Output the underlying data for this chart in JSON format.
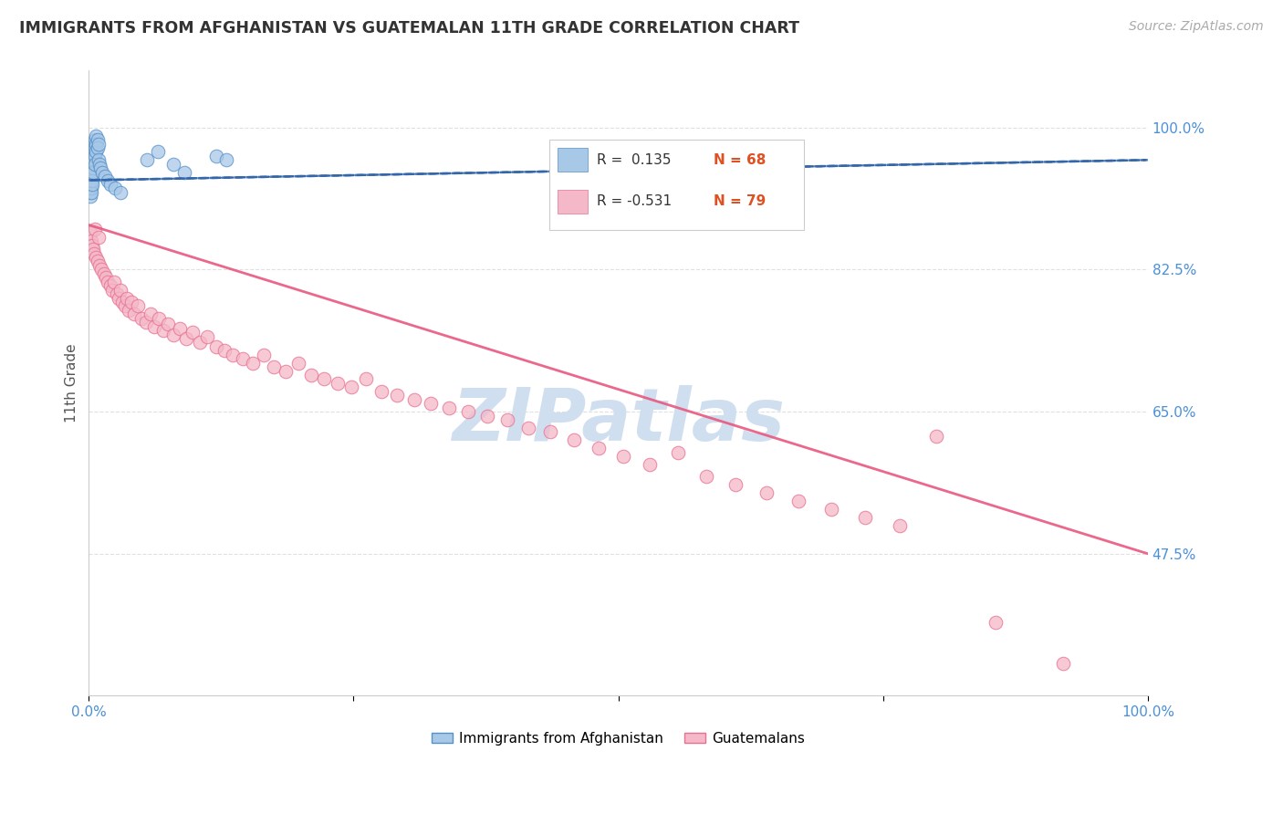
{
  "title": "IMMIGRANTS FROM AFGHANISTAN VS GUATEMALAN 11TH GRADE CORRELATION CHART",
  "source": "Source: ZipAtlas.com",
  "ylabel": "11th Grade",
  "ytick_labels": [
    "100.0%",
    "82.5%",
    "65.0%",
    "47.5%"
  ],
  "ytick_values": [
    1.0,
    0.825,
    0.65,
    0.475
  ],
  "afghanistan_color": "#a8c8e8",
  "guatemala_color": "#f4b8c8",
  "afghanistan_edge": "#5590c8",
  "guatemala_edge": "#e87090",
  "trend_afghanistan_color": "#3366aa",
  "trend_guatemala_color": "#e85880",
  "watermark_color": "#d0dff0",
  "background_color": "#ffffff",
  "xlim": [
    0.0,
    1.0
  ],
  "ylim": [
    0.3,
    1.07
  ],
  "afghanistan_points_x": [
    0.001,
    0.001,
    0.001,
    0.001,
    0.001,
    0.001,
    0.001,
    0.001,
    0.001,
    0.001,
    0.002,
    0.002,
    0.002,
    0.002,
    0.002,
    0.002,
    0.002,
    0.002,
    0.002,
    0.002,
    0.003,
    0.003,
    0.003,
    0.003,
    0.003,
    0.003,
    0.003,
    0.003,
    0.003,
    0.004,
    0.004,
    0.004,
    0.004,
    0.004,
    0.004,
    0.004,
    0.005,
    0.005,
    0.005,
    0.005,
    0.005,
    0.006,
    0.006,
    0.006,
    0.006,
    0.007,
    0.007,
    0.007,
    0.008,
    0.008,
    0.009,
    0.009,
    0.01,
    0.011,
    0.013,
    0.015,
    0.018,
    0.02,
    0.025,
    0.03,
    0.055,
    0.065,
    0.08,
    0.09,
    0.12,
    0.13
  ],
  "afghanistan_points_y": [
    0.96,
    0.955,
    0.95,
    0.945,
    0.94,
    0.935,
    0.93,
    0.925,
    0.92,
    0.915,
    0.965,
    0.96,
    0.955,
    0.95,
    0.945,
    0.94,
    0.935,
    0.93,
    0.925,
    0.92,
    0.97,
    0.965,
    0.96,
    0.955,
    0.95,
    0.945,
    0.94,
    0.935,
    0.93,
    0.975,
    0.97,
    0.965,
    0.96,
    0.955,
    0.95,
    0.945,
    0.98,
    0.975,
    0.97,
    0.965,
    0.96,
    0.985,
    0.975,
    0.965,
    0.955,
    0.99,
    0.98,
    0.97,
    0.985,
    0.975,
    0.98,
    0.96,
    0.955,
    0.95,
    0.945,
    0.94,
    0.935,
    0.93,
    0.925,
    0.92,
    0.96,
    0.97,
    0.955,
    0.945,
    0.965,
    0.96
  ],
  "guatemala_points_x": [
    0.001,
    0.002,
    0.003,
    0.004,
    0.005,
    0.006,
    0.007,
    0.008,
    0.009,
    0.01,
    0.012,
    0.014,
    0.016,
    0.018,
    0.02,
    0.022,
    0.024,
    0.026,
    0.028,
    0.03,
    0.032,
    0.034,
    0.036,
    0.038,
    0.04,
    0.043,
    0.046,
    0.05,
    0.054,
    0.058,
    0.062,
    0.066,
    0.07,
    0.075,
    0.08,
    0.086,
    0.092,
    0.098,
    0.105,
    0.112,
    0.12,
    0.128,
    0.136,
    0.145,
    0.155,
    0.165,
    0.175,
    0.186,
    0.198,
    0.21,
    0.222,
    0.235,
    0.248,
    0.262,
    0.276,
    0.291,
    0.307,
    0.323,
    0.34,
    0.358,
    0.376,
    0.395,
    0.415,
    0.436,
    0.458,
    0.481,
    0.505,
    0.53,
    0.556,
    0.583,
    0.611,
    0.64,
    0.67,
    0.701,
    0.733,
    0.766,
    0.8,
    0.856,
    0.92
  ],
  "guatemala_points_y": [
    0.87,
    0.86,
    0.855,
    0.85,
    0.845,
    0.875,
    0.84,
    0.835,
    0.865,
    0.83,
    0.825,
    0.82,
    0.815,
    0.81,
    0.805,
    0.8,
    0.81,
    0.795,
    0.79,
    0.8,
    0.785,
    0.78,
    0.79,
    0.775,
    0.785,
    0.77,
    0.78,
    0.765,
    0.76,
    0.77,
    0.755,
    0.765,
    0.75,
    0.758,
    0.745,
    0.752,
    0.74,
    0.748,
    0.735,
    0.742,
    0.73,
    0.725,
    0.72,
    0.715,
    0.71,
    0.72,
    0.705,
    0.7,
    0.71,
    0.695,
    0.69,
    0.685,
    0.68,
    0.69,
    0.675,
    0.67,
    0.665,
    0.66,
    0.655,
    0.65,
    0.645,
    0.64,
    0.63,
    0.625,
    0.615,
    0.605,
    0.595,
    0.585,
    0.6,
    0.57,
    0.56,
    0.55,
    0.54,
    0.53,
    0.52,
    0.51,
    0.62,
    0.39,
    0.34
  ],
  "af_trend_x0": 0.0,
  "af_trend_x1": 1.0,
  "af_trend_y0": 0.935,
  "af_trend_y1": 0.96,
  "gt_trend_x0": 0.0,
  "gt_trend_x1": 1.0,
  "gt_trend_y0": 0.88,
  "gt_trend_y1": 0.475
}
